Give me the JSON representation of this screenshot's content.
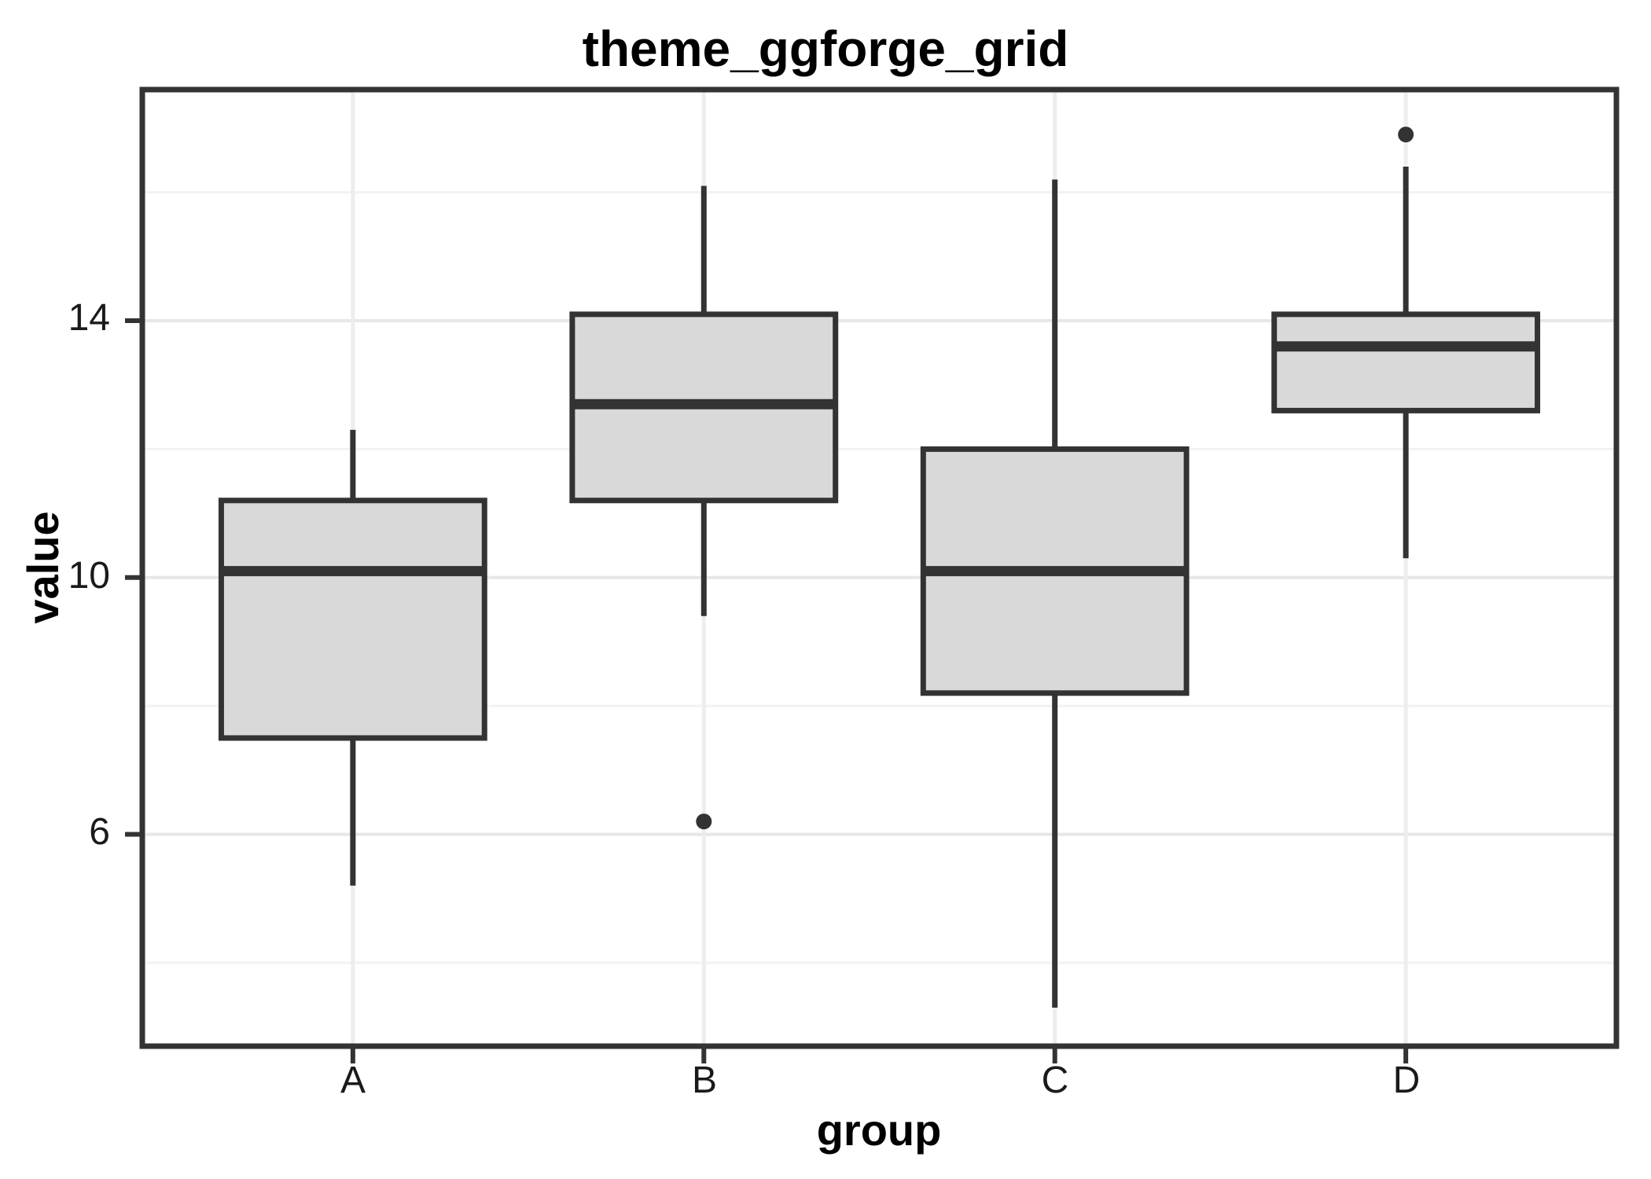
{
  "chart_data": {
    "type": "boxplot",
    "title": "theme_ggforge_grid",
    "xlabel": "group",
    "ylabel": "value",
    "categories": [
      "A",
      "B",
      "C",
      "D"
    ],
    "y_ticks": [
      6,
      10,
      14
    ],
    "y_tick_labels": [
      "6",
      "10",
      "14"
    ],
    "y_minor_gridlines": [
      4,
      8,
      12,
      16
    ],
    "ylim": [
      2.7,
      17.6
    ],
    "grid": "major and minor horizontal gridlines, vertical gridlines at each category",
    "legend_position": "none",
    "series": [
      {
        "group": "A",
        "whisker_low": 5.2,
        "q1": 7.5,
        "median": 10.1,
        "q3": 11.2,
        "whisker_high": 12.3,
        "outliers": []
      },
      {
        "group": "B",
        "whisker_low": 9.4,
        "q1": 11.2,
        "median": 12.7,
        "q3": 14.1,
        "whisker_high": 16.1,
        "outliers": [
          6.2
        ]
      },
      {
        "group": "C",
        "whisker_low": 3.3,
        "q1": 8.2,
        "median": 10.1,
        "q3": 12.0,
        "whisker_high": 16.2,
        "outliers": []
      },
      {
        "group": "D",
        "whisker_low": 10.3,
        "q1": 12.6,
        "median": 13.6,
        "q3": 14.1,
        "whisker_high": 16.4,
        "outliers": [
          16.9
        ]
      }
    ],
    "colors": {
      "background": "#FFFFFF",
      "panel_border": "#333333",
      "box_stroke": "#333333",
      "box_fill": "#D9D9D9",
      "median_stroke": "#333333",
      "outlier_fill": "#333333",
      "grid_major": "#E7E7E7",
      "grid_minor": "#F2F2F2",
      "grid_vertical": "#EDEDED",
      "tick_mark": "#333333",
      "text": "#1a1a1a"
    }
  }
}
